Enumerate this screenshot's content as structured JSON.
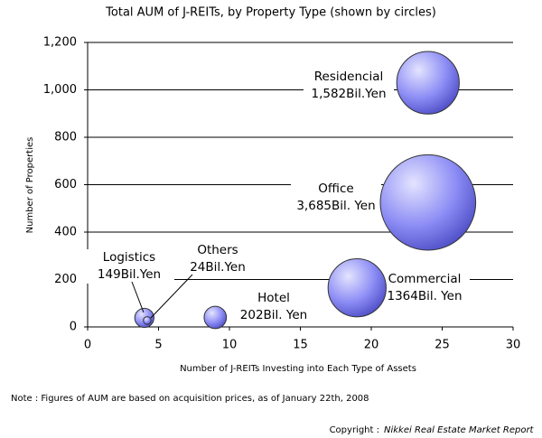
{
  "chart_data": {
    "type": "bubble",
    "title": "Total AUM of J-REITs, by Property Type (shown by circles)",
    "x_label": "Number of J-REITs Investing into Each Type of Assets",
    "y_label": "Number of Properties",
    "note": "Note : Figures of AUM are based on acquisition prices, as of January 22th, 2008",
    "copyright_label": "Copyright :",
    "copyright_source": "Nikkei Real Estate Market Report",
    "categories": [
      "Residencial",
      "Office",
      "Commercial",
      "Hotel",
      "Logistics",
      "Others"
    ],
    "x": [
      24,
      24,
      19,
      9,
      4,
      4.2
    ],
    "values": [
      1030,
      525,
      165,
      40,
      38,
      27
    ],
    "sizes": [
      1582,
      3685,
      1364,
      202,
      149,
      24
    ],
    "value_labels": [
      "1,582Bil.Yen",
      "3,685Bil. Yen",
      "1364Bil. Yen",
      "202Bil. Yen",
      "149Bil.Yen",
      "24Bil.Yen"
    ],
    "color": "#8c8cf5",
    "xlim": [
      0,
      30
    ],
    "xticks": [
      0,
      5,
      10,
      15,
      20,
      25,
      30
    ],
    "ylim": [
      0,
      1200
    ],
    "yticks": [
      0,
      200,
      400,
      600,
      800,
      {
        "value": 1000,
        "label": "1,000"
      },
      {
        "value": 1200,
        "label": "1,200"
      }
    ],
    "grid": true
  }
}
